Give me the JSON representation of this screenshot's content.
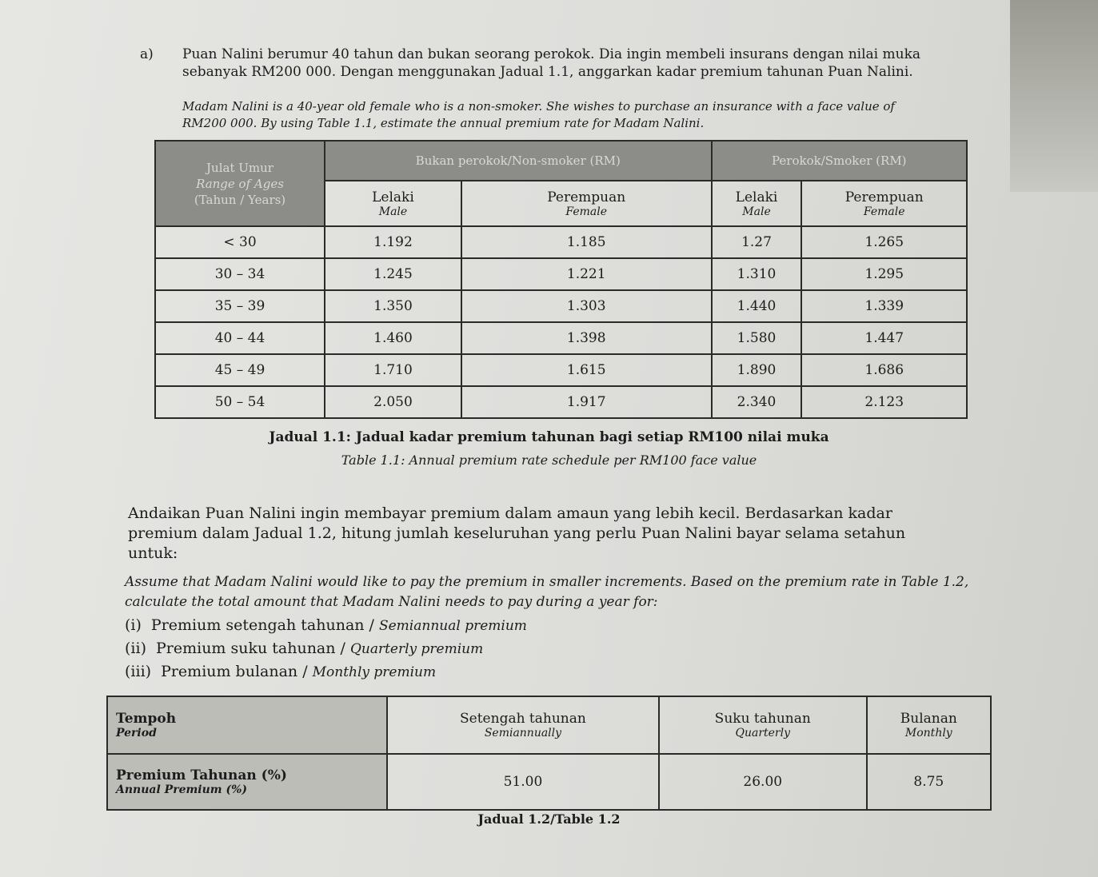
{
  "question": {
    "label": "a)",
    "malay": "Puan Nalini berumur 40 tahun dan bukan seorang perokok. Dia ingin membeli insurans dengan nilai muka sebanyak RM200 000. Dengan menggunakan Jadual 1.1, anggarkan kadar premium tahunan Puan Nalini.",
    "english": "Madam Nalini is a 40-year old female who is a non-smoker. She wishes to purchase an insurance with a face value of RM200 000. By using Table 1.1, estimate the annual premium rate for Madam Nalini."
  },
  "table1": {
    "age_header": [
      "Julat Umur",
      "Range of Ages",
      "(Tahun / Years)"
    ],
    "nonsmoker_header": "Bukan perokok/Non-smoker (RM)",
    "smoker_header": "Perokok/Smoker (RM)",
    "sub_headers": [
      {
        "malay": "Lelaki",
        "english": "Male"
      },
      {
        "malay": "Perempuan",
        "english": "Female"
      },
      {
        "malay": "Lelaki",
        "english": "Male"
      },
      {
        "malay": "Perempuan",
        "english": "Female"
      }
    ],
    "rows": [
      {
        "age": "< 30",
        "values": [
          "1.192",
          "1.185",
          "1.27",
          "1.265"
        ]
      },
      {
        "age": "30 – 34",
        "values": [
          "1.245",
          "1.221",
          "1.310",
          "1.295"
        ]
      },
      {
        "age": "35 – 39",
        "values": [
          "1.350",
          "1.303",
          "1.440",
          "1.339"
        ]
      },
      {
        "age": "40 – 44",
        "values": [
          "1.460",
          "1.398",
          "1.580",
          "1.447"
        ]
      },
      {
        "age": "45 – 49",
        "values": [
          "1.710",
          "1.615",
          "1.890",
          "1.686"
        ]
      },
      {
        "age": "50 – 54",
        "values": [
          "2.050",
          "1.917",
          "2.340",
          "2.123"
        ]
      }
    ],
    "caption_malay": "Jadual 1.1: Jadual kadar premium tahunan bagi setiap RM100 nilai muka",
    "caption_english": "Table 1.1: Annual premium rate schedule per RM100 face value"
  },
  "part2": {
    "malay": "Andaikan Puan Nalini ingin membayar premium dalam amaun yang lebih kecil. Berdasarkan kadar premium dalam Jadual 1.2, hitung jumlah keseluruhan yang perlu Puan Nalini bayar selama setahun untuk:",
    "english": "Assume that Madam Nalini would like to pay the premium in smaller increments. Based on the premium rate in Table 1.2, calculate the total amount that Madam Nalini needs to pay during a year for:",
    "items": [
      {
        "num": "(i)",
        "malay": "Premium setengah tahunan /",
        "english": "Semiannual premium"
      },
      {
        "num": "(ii)",
        "malay": "Premium suku tahunan /",
        "english": "Quarterly premium"
      },
      {
        "num": "(iii)",
        "malay": "Premium bulanan /",
        "english": "Monthly premium"
      }
    ]
  },
  "table2": {
    "period": {
      "malay": "Tempoh",
      "english": "Period"
    },
    "premium": {
      "malay": "Premium Tahunan (%)",
      "english": "Annual Premium (%)"
    },
    "columns": [
      {
        "malay": "Setengah tahunan",
        "english": "Semiannually",
        "value": "51.00"
      },
      {
        "malay": "Suku tahunan",
        "english": "Quarterly",
        "value": "26.00"
      },
      {
        "malay": "Bulanan",
        "english": "Monthly",
        "value": "8.75"
      }
    ],
    "caption": "Jadual 1.2/Table 1.2"
  }
}
